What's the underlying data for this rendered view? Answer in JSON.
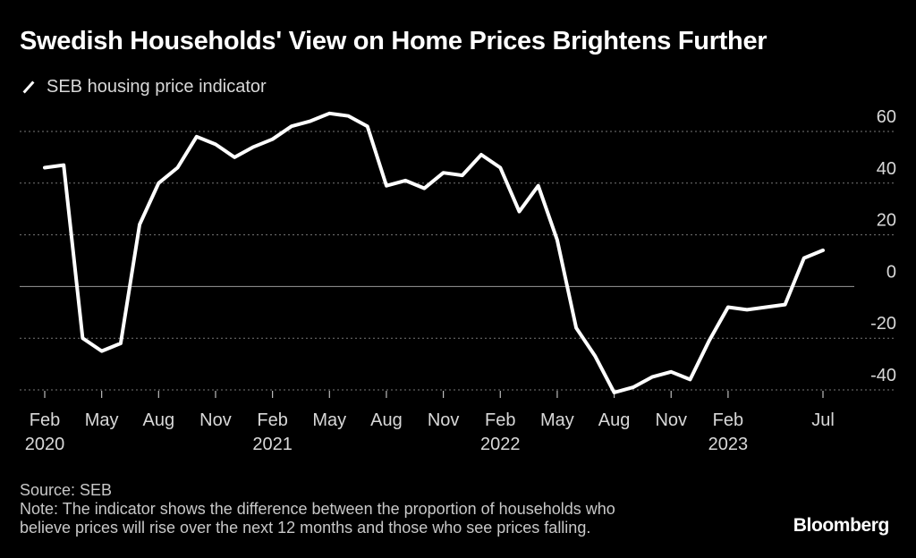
{
  "header": {
    "title": "Swedish Households' View on Home Prices Brightens Further"
  },
  "footer": {
    "source": "Source: SEB",
    "note_line1": "Note: The indicator shows the difference between the proportion of households who",
    "note_line2": "believe prices will rise over the next 12 months and those who see prices falling.",
    "brand": "Bloomberg"
  },
  "colors": {
    "background": "#000000",
    "line": "#ffffff",
    "grid": "#777777",
    "text": "#ffffff",
    "muted_text": "#c8c8c8"
  },
  "chart_data": {
    "type": "line",
    "title": "Swedish Households' View on Home Prices Brightens Further",
    "xlabel": "",
    "ylabel": "",
    "ylim": [
      -45,
      65
    ],
    "y_ticks": [
      60,
      40,
      20,
      0,
      -20,
      -40
    ],
    "y_tick_labels": [
      "60",
      "40",
      "20",
      "0",
      "-20",
      "-40"
    ],
    "y_axis_position": "right",
    "grid": "horizontal dotted, solid zero line",
    "legend": "top-left",
    "x_ticks": [
      {
        "month": "2020-02",
        "label": "Feb",
        "year_label": "2020"
      },
      {
        "month": "2020-05",
        "label": "May",
        "year_label": ""
      },
      {
        "month": "2020-08",
        "label": "Aug",
        "year_label": ""
      },
      {
        "month": "2020-11",
        "label": "Nov",
        "year_label": ""
      },
      {
        "month": "2021-02",
        "label": "Feb",
        "year_label": "2021"
      },
      {
        "month": "2021-05",
        "label": "May",
        "year_label": ""
      },
      {
        "month": "2021-08",
        "label": "Aug",
        "year_label": ""
      },
      {
        "month": "2021-11",
        "label": "Nov",
        "year_label": ""
      },
      {
        "month": "2022-02",
        "label": "Feb",
        "year_label": "2022"
      },
      {
        "month": "2022-05",
        "label": "May",
        "year_label": ""
      },
      {
        "month": "2022-08",
        "label": "Aug",
        "year_label": ""
      },
      {
        "month": "2022-11",
        "label": "Nov",
        "year_label": ""
      },
      {
        "month": "2023-02",
        "label": "Feb",
        "year_label": "2023"
      },
      {
        "month": "2023-07",
        "label": "Jul",
        "year_label": ""
      }
    ],
    "series": [
      {
        "name": "SEB housing price indicator",
        "x": [
          "2020-02",
          "2020-03",
          "2020-04",
          "2020-05",
          "2020-06",
          "2020-07",
          "2020-08",
          "2020-09",
          "2020-10",
          "2020-11",
          "2020-12",
          "2021-01",
          "2021-02",
          "2021-03",
          "2021-04",
          "2021-05",
          "2021-06",
          "2021-07",
          "2021-08",
          "2021-09",
          "2021-10",
          "2021-11",
          "2021-12",
          "2022-01",
          "2022-02",
          "2022-03",
          "2022-04",
          "2022-05",
          "2022-06",
          "2022-07",
          "2022-08",
          "2022-09",
          "2022-10",
          "2022-11",
          "2022-12",
          "2023-01",
          "2023-02",
          "2023-03",
          "2023-04",
          "2023-05",
          "2023-06",
          "2023-07"
        ],
        "values": [
          46,
          47,
          -20,
          -25,
          -22,
          24,
          40,
          46,
          58,
          55,
          50,
          54,
          57,
          62,
          64,
          67,
          66,
          62,
          39,
          41,
          38,
          44,
          43,
          51,
          46,
          29,
          39,
          18,
          -16,
          -27,
          -41,
          -39,
          -35,
          -33,
          -36,
          -21,
          -8,
          -9,
          -8,
          -7,
          11,
          14
        ]
      }
    ]
  }
}
